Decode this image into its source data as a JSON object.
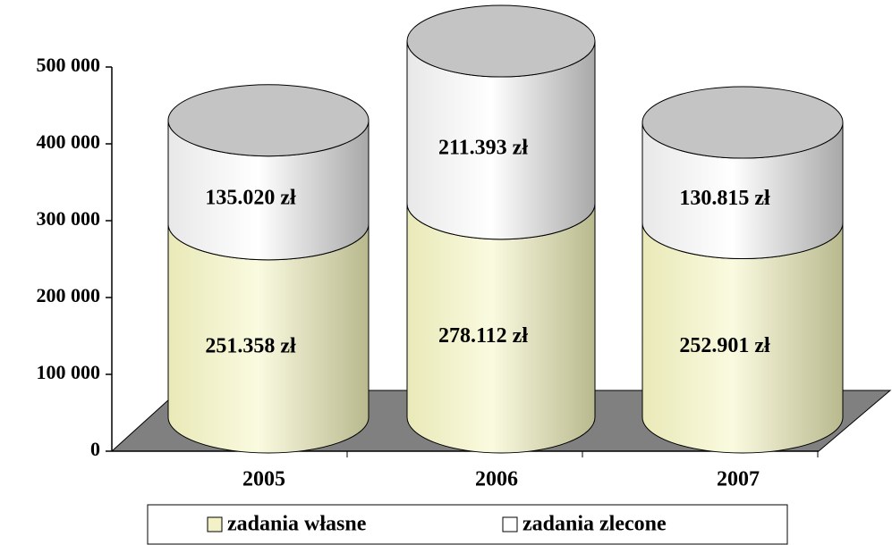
{
  "chart_data": {
    "type": "bar3d_cylinder_stacked",
    "categories": [
      "2005",
      "2006",
      "2007"
    ],
    "series": [
      {
        "name": "zadania własne",
        "color": "#f2f2c6",
        "values": [
          251358,
          278112,
          252901
        ],
        "value_labels": [
          "251.358 zł",
          "278.112 zł",
          "252.901 zł"
        ]
      },
      {
        "name": "zadania zlecone",
        "color": "#ffffff",
        "values": [
          135020,
          211393,
          130815
        ],
        "value_labels": [
          "135.020 zł",
          "211.393 zł",
          "130.815 zł"
        ]
      }
    ],
    "ylim": [
      0,
      500000
    ],
    "yticks": [
      0,
      {
        "value": 100000,
        "label": "100 000"
      },
      {
        "value": 200000,
        "label": "200 000"
      },
      {
        "value": 300000,
        "label": "300 000"
      },
      {
        "value": 400000,
        "label": "400 000"
      },
      {
        "value": 500000,
        "label": "500 000"
      }
    ],
    "legend": "bottom"
  }
}
